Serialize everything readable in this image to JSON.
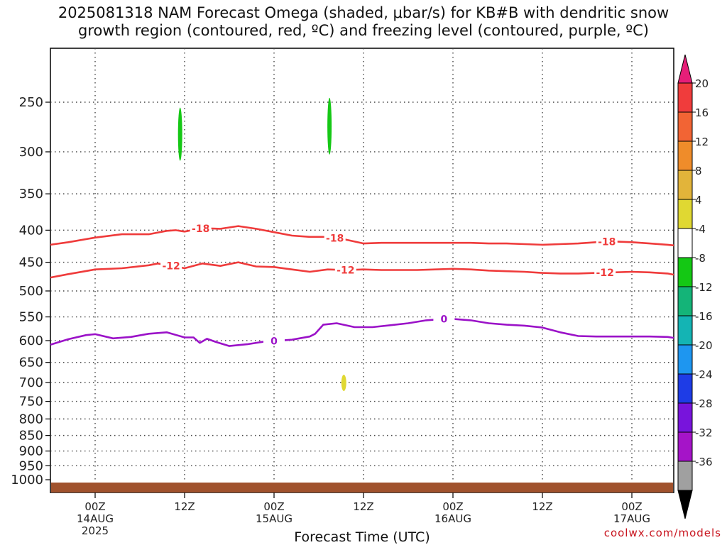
{
  "title": "2025081318 NAM Forecast Omega (shaded, μbar/s) for KB#B with dendritic snow\ngrowth region (contoured, red, ºC) and freezing level (contoured, purple, ºC)",
  "credit": "coolwx.com/models",
  "chart_data": {
    "type": "contour",
    "title": "2025081318 NAM Forecast Omega (shaded, μbar/s) for KB#B with dendritic snow growth region (contoured, red, ºC) and freezing level (contoured, purple, ºC)",
    "xlabel": "Forecast Time (UTC)",
    "ylabel": "",
    "x_unit": "forecast hour from 2025-08-14 00Z",
    "xlim": [
      -5,
      65
    ],
    "ylim": [
      1000,
      200
    ],
    "y_scale": "log-pressure",
    "grid": true,
    "y_ticks": [
      250,
      300,
      350,
      400,
      450,
      500,
      550,
      600,
      650,
      700,
      750,
      800,
      850,
      900,
      950,
      1000
    ],
    "x_ticks": [
      {
        "hour": 0,
        "label": "00Z",
        "sub": "14AUG",
        "sub2": "2025"
      },
      {
        "hour": 10,
        "label": "12Z",
        "sub": "",
        "sub2": ""
      },
      {
        "hour": 20,
        "label": "00Z",
        "sub": "15AUG",
        "sub2": ""
      },
      {
        "hour": 30,
        "label": "12Z",
        "sub": "",
        "sub2": ""
      },
      {
        "hour": 40,
        "label": "00Z",
        "sub": "16AUG",
        "sub2": ""
      },
      {
        "hour": 50,
        "label": "12Z",
        "sub": "",
        "sub2": ""
      },
      {
        "hour": 60,
        "label": "00Z",
        "sub": "17AUG",
        "sub2": ""
      }
    ],
    "series": [
      {
        "label": "-18",
        "color": "#ef3b3b",
        "x": [
          -5,
          -3,
          0,
          3,
          6,
          8,
          9,
          10,
          12,
          14,
          16,
          18,
          20,
          22,
          24,
          26,
          28,
          30,
          32,
          34,
          36,
          38,
          40,
          42,
          44,
          46,
          48,
          50,
          52,
          54,
          56,
          58,
          60,
          62,
          64,
          65
        ],
        "y": [
          422,
          418,
          411,
          406,
          406,
          401,
          400,
          402,
          397,
          398,
          394,
          398,
          403,
          408,
          410,
          410,
          414,
          420,
          419,
          419,
          419,
          419,
          419,
          419,
          420,
          420,
          421,
          422,
          421,
          420,
          418,
          417,
          418,
          420,
          422,
          423
        ],
        "label_x": [
          11.8,
          26.8,
          57.2
        ]
      },
      {
        "label": "-12",
        "color": "#ef3b3b",
        "x": [
          -5,
          -3,
          0,
          3,
          6,
          7,
          9,
          10,
          12,
          14,
          16,
          18,
          20,
          22,
          24,
          26,
          28,
          30,
          32,
          34,
          36,
          38,
          40,
          42,
          44,
          46,
          48,
          50,
          52,
          54,
          56,
          58,
          60,
          62,
          64,
          65
        ],
        "y": [
          476,
          470,
          462,
          460,
          455,
          452,
          457,
          460,
          452,
          456,
          450,
          457,
          458,
          462,
          466,
          462,
          463,
          462,
          463,
          463,
          463,
          462,
          461,
          462,
          464,
          465,
          466,
          468,
          469,
          469,
          468,
          467,
          466,
          467,
          469,
          471
        ],
        "label_x": [
          8.5,
          28.0,
          57.0
        ]
      },
      {
        "label": "0",
        "color": "#9b12c8",
        "x": [
          -5,
          -3,
          -1,
          0,
          2,
          4,
          6,
          8,
          10,
          11,
          11.7,
          12.5,
          13.5,
          15,
          17,
          19,
          20,
          22,
          24,
          24.6,
          25.5,
          27,
          29,
          31,
          33,
          35,
          37,
          39,
          40,
          42,
          44,
          46,
          48,
          50,
          52,
          54,
          56,
          58,
          60,
          62,
          64,
          65
        ],
        "y": [
          609,
          597,
          588,
          586,
          595,
          592,
          585,
          582,
          593,
          593,
          605,
          596,
          603,
          612,
          608,
          602,
          601,
          598,
          591,
          585,
          566,
          563,
          571,
          571,
          567,
          563,
          557,
          554,
          554,
          557,
          563,
          566,
          568,
          572,
          582,
          590,
          591,
          591,
          591,
          591,
          592,
          594
        ],
        "label_x": [
          20.0,
          39.0
        ]
      }
    ],
    "shaded_regions": [
      {
        "color": "#16c816",
        "center_hour": 9.5,
        "top": 255,
        "bottom": 310
      },
      {
        "color": "#16c816",
        "center_hour": 26.2,
        "top": 246,
        "bottom": 303
      },
      {
        "color": "#e0d832",
        "center_hour": 27.8,
        "top": 680,
        "bottom": 722
      }
    ],
    "terrain": {
      "color": "#a0522d",
      "top_pressure": 1010
    },
    "colorbar": [
      {
        "value": 20,
        "color": "#f03c3c"
      },
      {
        "value": 16,
        "color": "#f26434"
      },
      {
        "value": 12,
        "color": "#ef8c2a"
      },
      {
        "value": 8,
        "color": "#e2b43a"
      },
      {
        "value": 4,
        "color": "#e0d832"
      },
      {
        "value": -4,
        "color": "#ffffff"
      },
      {
        "value": -8,
        "color": "#14c814"
      },
      {
        "value": -12,
        "color": "#14b478"
      },
      {
        "value": -16,
        "color": "#14b4b4"
      },
      {
        "value": -20,
        "color": "#1e96f0"
      },
      {
        "value": -24,
        "color": "#1e3ce6"
      },
      {
        "value": -28,
        "color": "#7814dc"
      },
      {
        "value": -32,
        "color": "#a514c8"
      },
      {
        "value": -36,
        "color": "#a0a0a0"
      }
    ],
    "colorbar_top_color": "#e61e78",
    "colorbar_bottom_color": "#000000"
  }
}
